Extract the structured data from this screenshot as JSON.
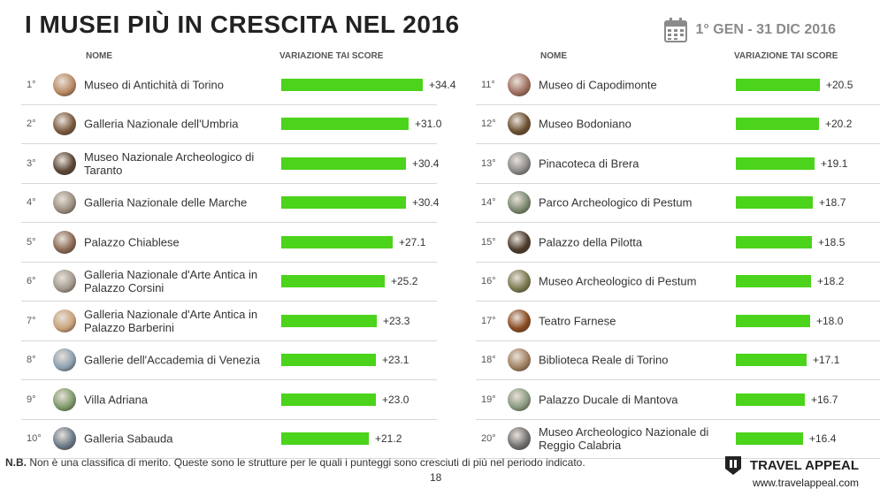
{
  "title": "I MUSEI PIÙ IN CRESCITA NEL 2016",
  "date_range": "1° GEN - 31 DIC 2016",
  "headers": {
    "name": "NOME",
    "score": "VARIAZIONE TAI SCORE"
  },
  "note": {
    "prefix": "N.B.",
    "text": " Non è una classifica di merito. Queste sono le strutture per le quali i punteggi sono cresciuti di più nel periodo indicato."
  },
  "page_number": "18",
  "brand": {
    "name": "TRAVEL APPEAL",
    "url": "www.travelappeal.com"
  },
  "colors": {
    "bar": "#4cd31b"
  },
  "chart_data": {
    "type": "bar",
    "orientation": "horizontal",
    "xlim": [
      0,
      34.4
    ],
    "items": [
      {
        "rank": "1°",
        "name": "Museo di Antichità di Torino",
        "value": 34.4,
        "label": "+34.4",
        "thumb": "#b98a62"
      },
      {
        "rank": "2°",
        "name": "Galleria Nazionale dell'Umbria",
        "value": 31.0,
        "label": "+31.0",
        "thumb": "#7a5a40"
      },
      {
        "rank": "3°",
        "name": "Museo Nazionale Archeologico di Taranto",
        "value": 30.4,
        "label": "+30.4",
        "thumb": "#5a4636"
      },
      {
        "rank": "4°",
        "name": "Galleria Nazionale delle Marche",
        "value": 30.4,
        "label": "+30.4",
        "thumb": "#9a8f80"
      },
      {
        "rank": "5°",
        "name": "Palazzo Chiablese",
        "value": 27.1,
        "label": "+27.1",
        "thumb": "#8a6a55"
      },
      {
        "rank": "6°",
        "name": "Galleria Nazionale d'Arte Antica in Palazzo Corsini",
        "value": 25.2,
        "label": "+25.2",
        "thumb": "#a39a90"
      },
      {
        "rank": "7°",
        "name": "Galleria Nazionale d'Arte Antica in Palazzo Barberini",
        "value": 23.3,
        "label": "+23.3",
        "thumb": "#c9a27a"
      },
      {
        "rank": "8°",
        "name": "Gallerie dell'Accademia di Venezia",
        "value": 23.1,
        "label": "+23.1",
        "thumb": "#8aa0b0"
      },
      {
        "rank": "9°",
        "name": "Villa Adriana",
        "value": 23.0,
        "label": "+23.0",
        "thumb": "#7f9a6a"
      },
      {
        "rank": "10°",
        "name": "Galleria Sabauda",
        "value": 21.2,
        "label": "+21.2",
        "thumb": "#6a7a8a"
      },
      {
        "rank": "11°",
        "name": "Museo di Capodimonte",
        "value": 20.5,
        "label": "+20.5",
        "thumb": "#a07060"
      },
      {
        "rank": "12°",
        "name": "Museo Bodoniano",
        "value": 20.2,
        "label": "+20.2",
        "thumb": "#6a5030"
      },
      {
        "rank": "13°",
        "name": "Pinacoteca di Brera",
        "value": 19.1,
        "label": "+19.1",
        "thumb": "#8a8a88"
      },
      {
        "rank": "14°",
        "name": "Parco Archeologico di Pestum",
        "value": 18.7,
        "label": "+18.7",
        "thumb": "#7a8a70"
      },
      {
        "rank": "15°",
        "name": "Palazzo della Pilotta",
        "value": 18.5,
        "label": "+18.5",
        "thumb": "#4a3a2a"
      },
      {
        "rank": "16°",
        "name": "Museo Archeologico di Pestum",
        "value": 18.2,
        "label": "+18.2",
        "thumb": "#7a7a50"
      },
      {
        "rank": "17°",
        "name": "Teatro Farnese",
        "value": 18.0,
        "label": "+18.0",
        "thumb": "#8a4a20"
      },
      {
        "rank": "18°",
        "name": "Biblioteca Reale di Torino",
        "value": 17.1,
        "label": "+17.1",
        "thumb": "#a08060"
      },
      {
        "rank": "19°",
        "name": "Palazzo Ducale di Mantova",
        "value": 16.7,
        "label": "+16.7",
        "thumb": "#8a9a80"
      },
      {
        "rank": "20°",
        "name": "Museo Archeologico Nazionale di Reggio Calabria",
        "value": 16.4,
        "label": "+16.4",
        "thumb": "#707070"
      }
    ]
  }
}
